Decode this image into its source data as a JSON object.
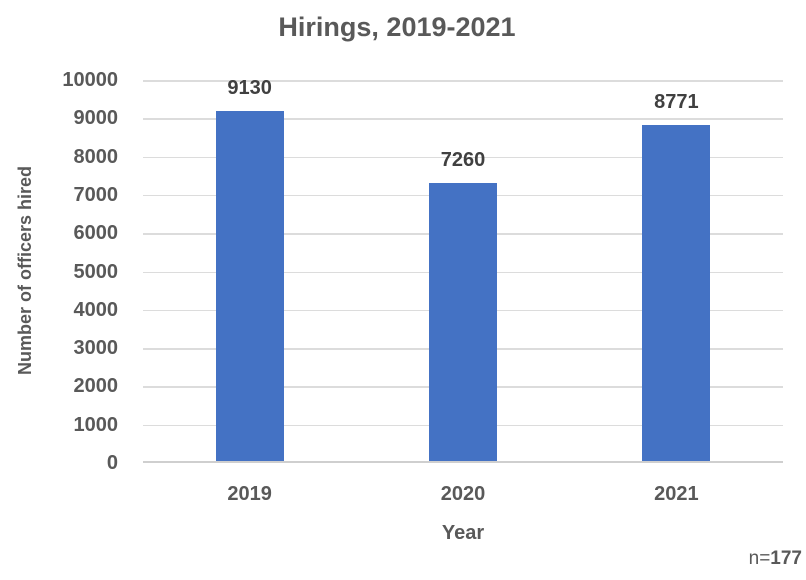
{
  "chart_data": {
    "type": "bar",
    "title": "Hirings, 2019-2021",
    "categories": [
      "2019",
      "2020",
      "2021"
    ],
    "values": [
      9130,
      7260,
      8771
    ],
    "data_labels": [
      "9130",
      "7260",
      "8771"
    ],
    "xlabel": "Year",
    "ylabel": "Number of officers hired",
    "ylim": [
      0,
      10000
    ],
    "ytick_step": 1000,
    "ytick_labels": [
      "0",
      "1000",
      "2000",
      "3000",
      "4000",
      "5000",
      "6000",
      "7000",
      "8000",
      "9000",
      "10000"
    ],
    "grid": true,
    "legend": "none",
    "bar_color": "#4472C4"
  },
  "note": {
    "prefix": "n=",
    "value": "177"
  },
  "colors": {
    "bar": "#4472C4",
    "title_text": "#595959",
    "axis_text": "#595959",
    "data_label_text": "#404040",
    "gridline": "#dcdcdc",
    "axis_line": "#cfcfcf",
    "background": "#ffffff"
  }
}
